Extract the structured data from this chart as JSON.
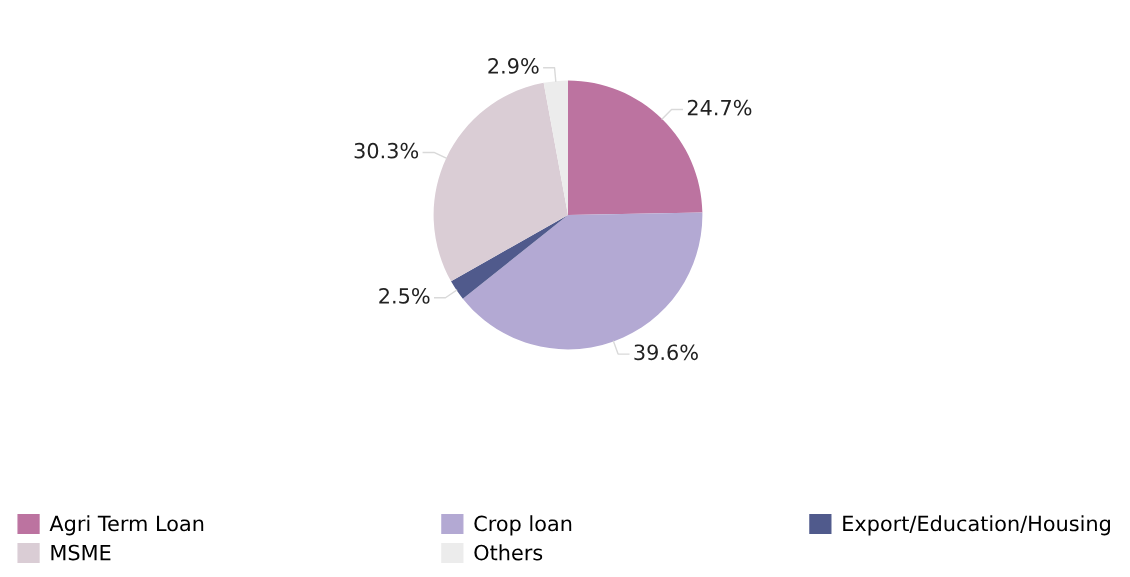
{
  "chart_data": {
    "type": "pie",
    "categories": [
      "Agri Term Loan",
      "Crop loan",
      "Export/Education/Housing",
      "MSME",
      "Others"
    ],
    "values": [
      24.7,
      39.6,
      2.5,
      30.3,
      2.9
    ],
    "value_labels": [
      "24.7%",
      "39.6%",
      "2.5%",
      "30.3%",
      "2.9%"
    ],
    "colors": [
      "#bc73a0",
      "#b3a9d3",
      "#505a8c",
      "#dacdd5",
      "#ececec"
    ],
    "legend": "bottom"
  }
}
